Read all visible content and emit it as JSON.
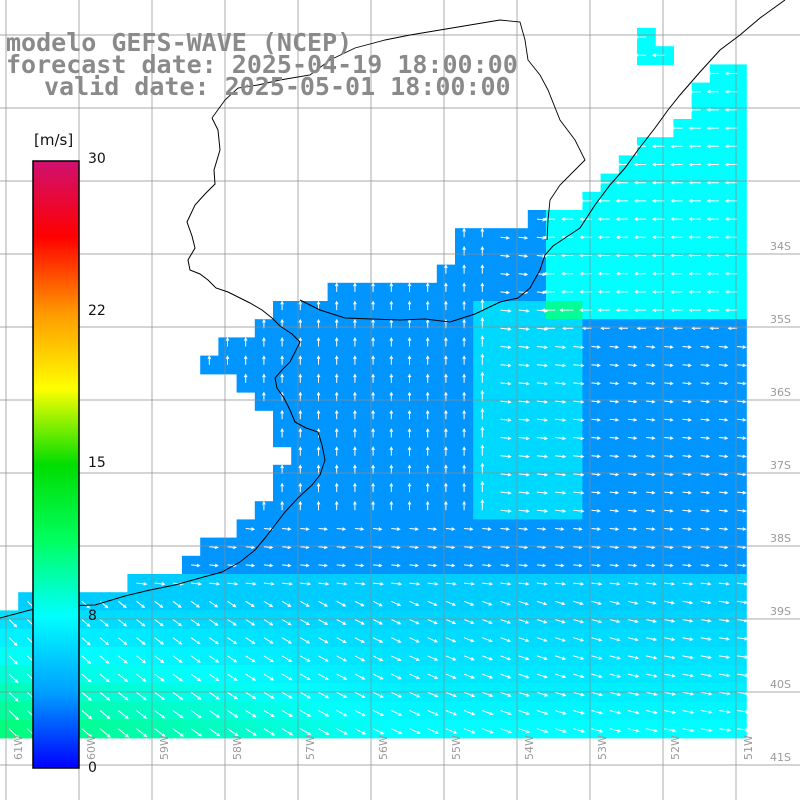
{
  "titles": {
    "model": "modelo GEFS-WAVE (NCEP)",
    "forecast": "forecast date: 2025-04-19 18:00:00",
    "valid": "valid date: 2025-05-01 18:00:00"
  },
  "colorbar": {
    "unit": "[m/s]",
    "labels": [
      "30",
      "22",
      "15",
      "8",
      "0"
    ],
    "range": [
      0,
      30
    ],
    "colors": [
      "#0000ff",
      "#00a0ff",
      "#00ffff",
      "#00ff60",
      "#00dd00",
      "#ffff00",
      "#ff9900",
      "#ff0000",
      "#d01070"
    ]
  },
  "map": {
    "lat_labels": [
      "34S",
      "35S",
      "36S",
      "37S",
      "38S",
      "39S",
      "40S",
      "41S"
    ],
    "lon_labels": [
      "61W",
      "60W",
      "59W",
      "58W",
      "57W",
      "56W",
      "55W",
      "54W",
      "53W",
      "52W",
      "51W"
    ],
    "land_color": "#ffffff",
    "grid_color": "#8c8c8c",
    "coast_color": "#000000",
    "arrow_color": "#ffffff"
  }
}
